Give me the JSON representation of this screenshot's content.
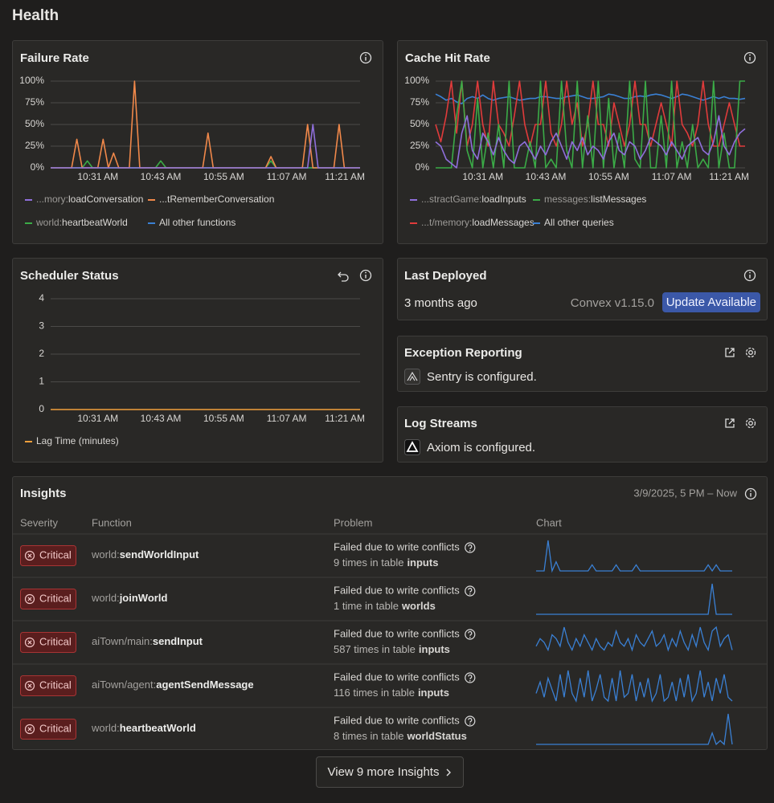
{
  "header": {
    "title": "Health"
  },
  "chart_data": [
    {
      "type": "line",
      "title": "Failure Rate",
      "categories": [
        null,
        null,
        null,
        null,
        null,
        null,
        null,
        null,
        null,
        "10:31 AM",
        null,
        null,
        null,
        null,
        null,
        null,
        null,
        null,
        null,
        null,
        null,
        "10:43 AM",
        null,
        null,
        null,
        null,
        null,
        null,
        null,
        null,
        null,
        null,
        null,
        "10:55 AM",
        null,
        null,
        null,
        null,
        null,
        null,
        null,
        null,
        null,
        null,
        null,
        "11:07 AM",
        null,
        null,
        null,
        null,
        null,
        null,
        null,
        null,
        null,
        null,
        null,
        null,
        null,
        "11:21 AM"
      ],
      "ylim": [
        0,
        100
      ],
      "yticks": [
        {
          "value": 0,
          "label": "0%"
        },
        {
          "value": 25,
          "label": "25%"
        },
        {
          "value": 50,
          "label": "50%"
        },
        {
          "value": 75,
          "label": "75%"
        },
        {
          "value": 100,
          "label": "100%"
        }
      ],
      "grid": true,
      "legend": "bottom",
      "series": [
        {
          "name": "...mory:loadConversation",
          "color": "#8f6fdb",
          "values": [
            0,
            0,
            0,
            0,
            0,
            0,
            0,
            0,
            0,
            0,
            0,
            0,
            0,
            0,
            0,
            0,
            0,
            0,
            0,
            0,
            0,
            0,
            0,
            0,
            0,
            0,
            0,
            0,
            0,
            0,
            0,
            0,
            0,
            0,
            0,
            0,
            0,
            0,
            0,
            0,
            0,
            0,
            0,
            0,
            0,
            0,
            0,
            0,
            0,
            0,
            50,
            0,
            0,
            0,
            0,
            0,
            0,
            0,
            0,
            0
          ]
        },
        {
          "name": "...tRememberConversation",
          "color": "#f0884a",
          "values": [
            0,
            0,
            0,
            0,
            0,
            33,
            0,
            0,
            0,
            0,
            33,
            0,
            17,
            0,
            0,
            0,
            100,
            0,
            0,
            0,
            0,
            0,
            0,
            0,
            0,
            0,
            0,
            0,
            0,
            0,
            40,
            0,
            0,
            0,
            0,
            0,
            0,
            0,
            0,
            0,
            0,
            0,
            13,
            0,
            0,
            0,
            0,
            0,
            0,
            50,
            0,
            0,
            0,
            0,
            0,
            50,
            0,
            0,
            0,
            0
          ]
        },
        {
          "name": "world:heartbeatWorld",
          "color": "#3bab47",
          "values": [
            0,
            0,
            0,
            0,
            0,
            0,
            0,
            8,
            0,
            0,
            0,
            0,
            0,
            0,
            0,
            0,
            0,
            0,
            0,
            0,
            0,
            8,
            0,
            0,
            0,
            0,
            0,
            0,
            0,
            0,
            0,
            0,
            0,
            0,
            0,
            0,
            0,
            0,
            0,
            0,
            0,
            0,
            8,
            0,
            0,
            0,
            0,
            0,
            0,
            0,
            0,
            0,
            0,
            0,
            0,
            0,
            0,
            0,
            0,
            0
          ]
        },
        {
          "name": "All other functions",
          "color": "#3a80d4",
          "values": [
            0,
            0,
            0,
            0,
            0,
            0,
            0,
            0,
            0,
            0,
            0,
            0,
            0,
            0,
            0,
            0,
            0,
            0,
            0,
            0,
            0,
            0,
            0,
            0,
            0,
            0,
            0,
            0,
            0,
            0,
            0,
            0,
            0,
            0,
            0,
            0,
            0,
            0,
            0,
            0,
            0,
            0,
            0,
            0,
            0,
            0,
            0,
            0,
            0,
            0,
            0,
            0,
            0,
            0,
            0,
            0,
            0,
            0,
            0,
            0
          ]
        }
      ]
    },
    {
      "type": "line",
      "title": "Cache Hit Rate",
      "categories": [
        null,
        null,
        null,
        null,
        null,
        null,
        null,
        null,
        null,
        "10:31 AM",
        null,
        null,
        null,
        null,
        null,
        null,
        null,
        null,
        null,
        null,
        null,
        "10:43 AM",
        null,
        null,
        null,
        null,
        null,
        null,
        null,
        null,
        null,
        null,
        null,
        "10:55 AM",
        null,
        null,
        null,
        null,
        null,
        null,
        null,
        null,
        null,
        null,
        null,
        "11:07 AM",
        null,
        null,
        null,
        null,
        null,
        null,
        null,
        null,
        null,
        null,
        null,
        null,
        null,
        "11:21 AM"
      ],
      "ylim": [
        0,
        100
      ],
      "yticks": [
        {
          "value": 0,
          "label": "0%"
        },
        {
          "value": 25,
          "label": "25%"
        },
        {
          "value": 50,
          "label": "50%"
        },
        {
          "value": 75,
          "label": "75%"
        },
        {
          "value": 100,
          "label": "100%"
        }
      ],
      "grid": true,
      "legend": "bottom",
      "series": [
        {
          "name": "...stractGame:loadInputs",
          "color": "#8f6fdb",
          "values": [
            30,
            25,
            10,
            5,
            0,
            40,
            60,
            20,
            10,
            40,
            30,
            15,
            35,
            20,
            10,
            5,
            25,
            30,
            20,
            10,
            25,
            15,
            30,
            40,
            25,
            10,
            30,
            20,
            35,
            15,
            25,
            20,
            10,
            30,
            40,
            20,
            15,
            30,
            25,
            10,
            20,
            35,
            30,
            25,
            15,
            30,
            20,
            10,
            25,
            30,
            35,
            20,
            15,
            30,
            60,
            25,
            15,
            30,
            40,
            45
          ]
        },
        {
          "name": "messages:listMessages",
          "color": "#3bab47",
          "values": [
            0,
            0,
            0,
            0,
            60,
            100,
            20,
            0,
            80,
            0,
            40,
            0,
            50,
            0,
            100,
            0,
            0,
            0,
            30,
            0,
            100,
            0,
            10,
            0,
            100,
            20,
            0,
            100,
            0,
            60,
            0,
            100,
            0,
            80,
            0,
            40,
            0,
            100,
            10,
            0,
            100,
            0,
            0,
            60,
            0,
            100,
            0,
            30,
            0,
            50,
            0,
            10,
            0,
            100,
            0,
            40,
            0,
            0,
            100,
            100
          ]
        },
        {
          "name": "...t/memory:loadMessages",
          "color": "#e03b3b",
          "values": [
            50,
            30,
            60,
            100,
            40,
            100,
            25,
            50,
            100,
            50,
            25,
            100,
            50,
            40,
            25,
            60,
            100,
            50,
            25,
            50,
            50,
            100,
            40,
            25,
            50,
            100,
            50,
            75,
            25,
            50,
            100,
            50,
            50,
            25,
            75,
            50,
            25,
            50,
            100,
            50,
            50,
            25,
            50,
            75,
            50,
            25,
            100,
            50,
            40,
            25,
            50,
            100,
            50,
            25,
            25,
            50,
            75,
            50,
            25,
            25
          ]
        },
        {
          "name": "All other queries",
          "color": "#3a80d4",
          "values": [
            85,
            82,
            78,
            80,
            76,
            74,
            80,
            82,
            80,
            84,
            80,
            78,
            80,
            81,
            82,
            80,
            78,
            79,
            80,
            80,
            82,
            82,
            81,
            80,
            80,
            82,
            83,
            84,
            82,
            80,
            80,
            81,
            82,
            85,
            84,
            82,
            80,
            80,
            82,
            83,
            82,
            84,
            85,
            84,
            82,
            80,
            82,
            85,
            84,
            82,
            80,
            78,
            80,
            82,
            80,
            82,
            80,
            80,
            79,
            80
          ]
        }
      ]
    },
    {
      "type": "line",
      "title": "Scheduler Status",
      "categories": [
        null,
        null,
        null,
        null,
        null,
        null,
        null,
        null,
        null,
        "10:31 AM",
        null,
        null,
        null,
        null,
        null,
        null,
        null,
        null,
        null,
        null,
        null,
        "10:43 AM",
        null,
        null,
        null,
        null,
        null,
        null,
        null,
        null,
        null,
        null,
        null,
        "10:55 AM",
        null,
        null,
        null,
        null,
        null,
        null,
        null,
        null,
        null,
        null,
        null,
        "11:07 AM",
        null,
        null,
        null,
        null,
        null,
        null,
        null,
        null,
        null,
        null,
        null,
        null,
        null,
        "11:21 AM"
      ],
      "ylim": [
        0,
        4
      ],
      "yticks": [
        0,
        1,
        2,
        3,
        4
      ],
      "grid": true,
      "legend": "bottom",
      "series": [
        {
          "name": "Lag Time (minutes)",
          "color": "#f2a03c",
          "values": [
            0,
            0,
            0,
            0,
            0,
            0,
            0,
            0,
            0,
            0,
            0,
            0,
            0,
            0,
            0,
            0,
            0,
            0,
            0,
            0,
            0,
            0,
            0,
            0,
            0,
            0,
            0,
            0,
            0,
            0,
            0,
            0,
            0,
            0,
            0,
            0,
            0,
            0,
            0,
            0,
            0,
            0,
            0,
            0,
            0,
            0,
            0,
            0,
            0,
            0,
            0,
            0,
            0,
            0,
            0,
            0,
            0,
            0,
            0,
            0
          ]
        }
      ]
    }
  ],
  "last_deployed": {
    "title": "Last Deployed",
    "time": "3 months ago",
    "version": "Convex v1.15.0",
    "button": "Update Available"
  },
  "exception_reporting": {
    "title": "Exception Reporting",
    "status": "Sentry is configured."
  },
  "log_streams": {
    "title": "Log Streams",
    "status": "Axiom is configured."
  },
  "insights": {
    "title": "Insights",
    "range": "3/9/2025, 5 PM – Now",
    "columns": [
      "Severity",
      "Function",
      "Problem",
      "Chart"
    ],
    "rows": [
      {
        "severity": "Critical",
        "function": "world:sendWorldInput",
        "problem": "Failed due to write conflicts",
        "occurrences": "9 times in table",
        "table": "inputs",
        "chart": [
          0,
          0,
          0,
          10,
          0,
          3,
          0,
          0,
          0,
          0,
          0,
          0,
          0,
          0,
          2,
          0,
          0,
          0,
          0,
          0,
          2,
          0,
          0,
          0,
          0,
          2,
          0,
          0,
          0,
          0,
          0,
          0,
          0,
          0,
          0,
          0,
          0,
          0,
          0,
          0,
          0,
          0,
          0,
          2,
          0,
          2,
          0,
          0,
          0,
          0
        ]
      },
      {
        "severity": "Critical",
        "function": "world:joinWorld",
        "problem": "Failed due to write conflicts",
        "occurrences": "1 time in table",
        "table": "worlds",
        "chart": [
          0,
          0,
          0,
          0,
          0,
          0,
          0,
          0,
          0,
          0,
          0,
          0,
          0,
          0,
          0,
          0,
          0,
          0,
          0,
          0,
          0,
          0,
          0,
          0,
          0,
          0,
          0,
          0,
          0,
          0,
          0,
          0,
          0,
          0,
          0,
          0,
          0,
          0,
          0,
          0,
          0,
          0,
          0,
          0,
          1,
          0,
          0,
          0,
          0,
          0
        ]
      },
      {
        "severity": "Critical",
        "function": "aiTown/main:sendInput",
        "problem": "Failed due to write conflicts",
        "occurrences": "587 times in table",
        "table": "inputs",
        "chart": [
          3,
          5,
          4,
          2,
          6,
          5,
          3,
          8,
          4,
          2,
          5,
          3,
          6,
          4,
          2,
          5,
          3,
          2,
          4,
          3,
          7,
          4,
          3,
          5,
          2,
          6,
          4,
          3,
          5,
          7,
          3,
          4,
          6,
          2,
          5,
          3,
          7,
          4,
          2,
          6,
          3,
          8,
          4,
          2,
          7,
          8,
          3,
          5,
          6,
          2
        ]
      },
      {
        "severity": "Critical",
        "function": "aiTown/agent:agentSendMessage",
        "problem": "Failed due to write conflicts",
        "occurrences": "116 times in table",
        "table": "inputs",
        "chart": [
          2,
          5,
          1,
          6,
          3,
          0,
          7,
          1,
          8,
          2,
          0,
          6,
          1,
          8,
          0,
          3,
          7,
          1,
          0,
          6,
          0,
          8,
          1,
          2,
          7,
          0,
          5,
          1,
          6,
          0,
          2,
          7,
          0,
          1,
          5,
          0,
          6,
          1,
          7,
          0,
          2,
          8,
          1,
          5,
          0,
          6,
          2,
          7,
          1,
          0
        ]
      },
      {
        "severity": "Critical",
        "function": "world:heartbeatWorld",
        "problem": "Failed due to write conflicts",
        "occurrences": "8 times in table",
        "table": "worldStatus",
        "chart": [
          0,
          0,
          0,
          0,
          0,
          0,
          0,
          0,
          0,
          0,
          0,
          0,
          0,
          0,
          0,
          0,
          0,
          0,
          0,
          0,
          0,
          0,
          0,
          0,
          0,
          0,
          0,
          0,
          0,
          0,
          0,
          0,
          0,
          0,
          0,
          0,
          0,
          0,
          0,
          0,
          0,
          0,
          0,
          0,
          3,
          0,
          1,
          0,
          8,
          0
        ]
      }
    ],
    "more": "View 9 more Insights"
  }
}
